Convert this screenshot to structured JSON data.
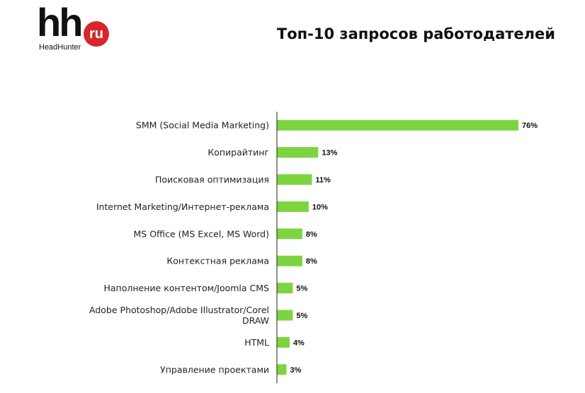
{
  "header": {
    "title": "Топ-10 запросов работодателей",
    "logo_text": "hh",
    "logo_circle_text": "ru",
    "logo_subtitle": "HeadHunter"
  },
  "colors": {
    "bar": "#7ed43f",
    "axis": "#222222",
    "logo_red": "#d6262b"
  },
  "chart_data": {
    "type": "bar",
    "orientation": "horizontal",
    "categories": [
      [
        "SMM (Social Media Marketing)"
      ],
      [
        "Копирайтинг"
      ],
      [
        "Поисковая оптимизация"
      ],
      [
        "Internet Marketing/Интернет-реклама"
      ],
      [
        "MS Office (MS Excel, MS Word)"
      ],
      [
        "Контекстная  реклама"
      ],
      [
        "Наполнение контентом/Joomla  CMS"
      ],
      [
        "Adobe Photoshop/Adobe Illustrator/Corel",
        "DRAW"
      ],
      [
        "HTML"
      ],
      [
        "Управление проектами"
      ]
    ],
    "values": [
      76,
      13,
      11,
      10,
      8,
      8,
      5,
      5,
      4,
      3
    ],
    "data_labels": [
      "76%",
      "13%",
      "11%",
      "10%",
      "8%",
      "8%",
      "5%",
      "5%",
      "4%",
      "3%"
    ],
    "title": "Топ-10 запросов работодателей",
    "unit": "%",
    "xlim": [
      0,
      76
    ],
    "grid": false,
    "legend": "none"
  }
}
